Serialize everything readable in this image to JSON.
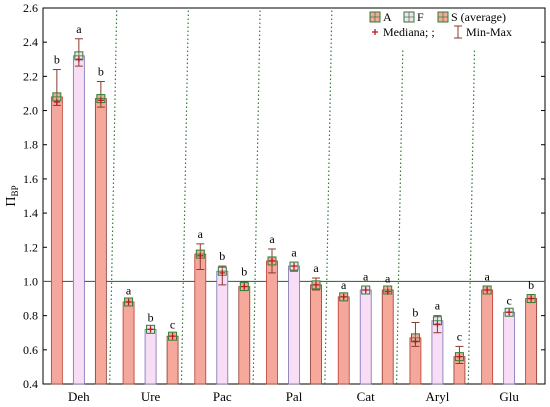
{
  "chart_data": {
    "type": "bar",
    "ylabel": "Π",
    "ylabel_sub": "BP",
    "ylim": [
      0.4,
      2.6
    ],
    "yticks": [
      "0.4",
      "0.6",
      "0.8",
      "1.0",
      "1.2",
      "1.4",
      "1.6",
      "1.8",
      "2.0",
      "2.2",
      "2.4",
      "2.6"
    ],
    "categories": [
      "Deh",
      "Ure",
      "Pac",
      "Pal",
      "Cat",
      "Aryl",
      "Glu"
    ],
    "reference_line": 1.0,
    "series": [
      {
        "name": "A",
        "fill": "#f4a79d",
        "border": "#c0392b",
        "values": [
          2.08,
          0.88,
          1.16,
          1.12,
          0.91,
          0.67,
          0.95
        ],
        "median": [
          2.05,
          0.88,
          1.15,
          1.12,
          0.91,
          0.65,
          0.95
        ],
        "min": [
          2.03,
          0.87,
          1.07,
          1.05,
          0.89,
          0.62,
          0.94
        ],
        "max": [
          2.24,
          0.89,
          1.22,
          1.19,
          0.92,
          0.76,
          0.97
        ],
        "letters": [
          "b",
          "a",
          "a",
          "a",
          "a",
          "b",
          "a"
        ]
      },
      {
        "name": "F",
        "fill": "#f7ddf5",
        "border": "#7a6fae",
        "values": [
          2.32,
          0.72,
          1.06,
          1.09,
          0.95,
          0.77,
          0.82
        ],
        "median": [
          2.3,
          0.72,
          1.05,
          1.09,
          0.95,
          0.75,
          0.82
        ],
        "min": [
          2.26,
          0.7,
          0.98,
          1.06,
          0.93,
          0.7,
          0.81
        ],
        "max": [
          2.42,
          0.73,
          1.09,
          1.11,
          0.97,
          0.8,
          0.83
        ],
        "letters": [
          "a",
          "b",
          "b",
          "a",
          "a",
          "a",
          "c"
        ]
      },
      {
        "name": "S (average)",
        "fill": "#f6a99b",
        "border": "#8b3a2f",
        "values": [
          2.07,
          0.68,
          0.97,
          0.98,
          0.95,
          0.56,
          0.9
        ],
        "median": [
          2.06,
          0.68,
          0.97,
          0.98,
          0.94,
          0.56,
          0.9
        ],
        "min": [
          2.02,
          0.66,
          0.95,
          0.95,
          0.93,
          0.52,
          0.88
        ],
        "max": [
          2.17,
          0.69,
          1.0,
          1.02,
          0.96,
          0.62,
          0.92
        ],
        "letters": [
          "b",
          "c",
          "b",
          "a",
          "a",
          "c",
          "b"
        ]
      }
    ],
    "legend": {
      "placement": "top-right",
      "items": [
        "A",
        "F",
        "S (average)"
      ],
      "median_label": "Mediana; ;",
      "range_label": "Min-Max"
    },
    "colors": {
      "marker": "#2e7d32",
      "median": "#b71c1c",
      "whisker": "#8b3a2f",
      "reference_line": "#2e7d32",
      "divider": "#2e7d32"
    }
  }
}
